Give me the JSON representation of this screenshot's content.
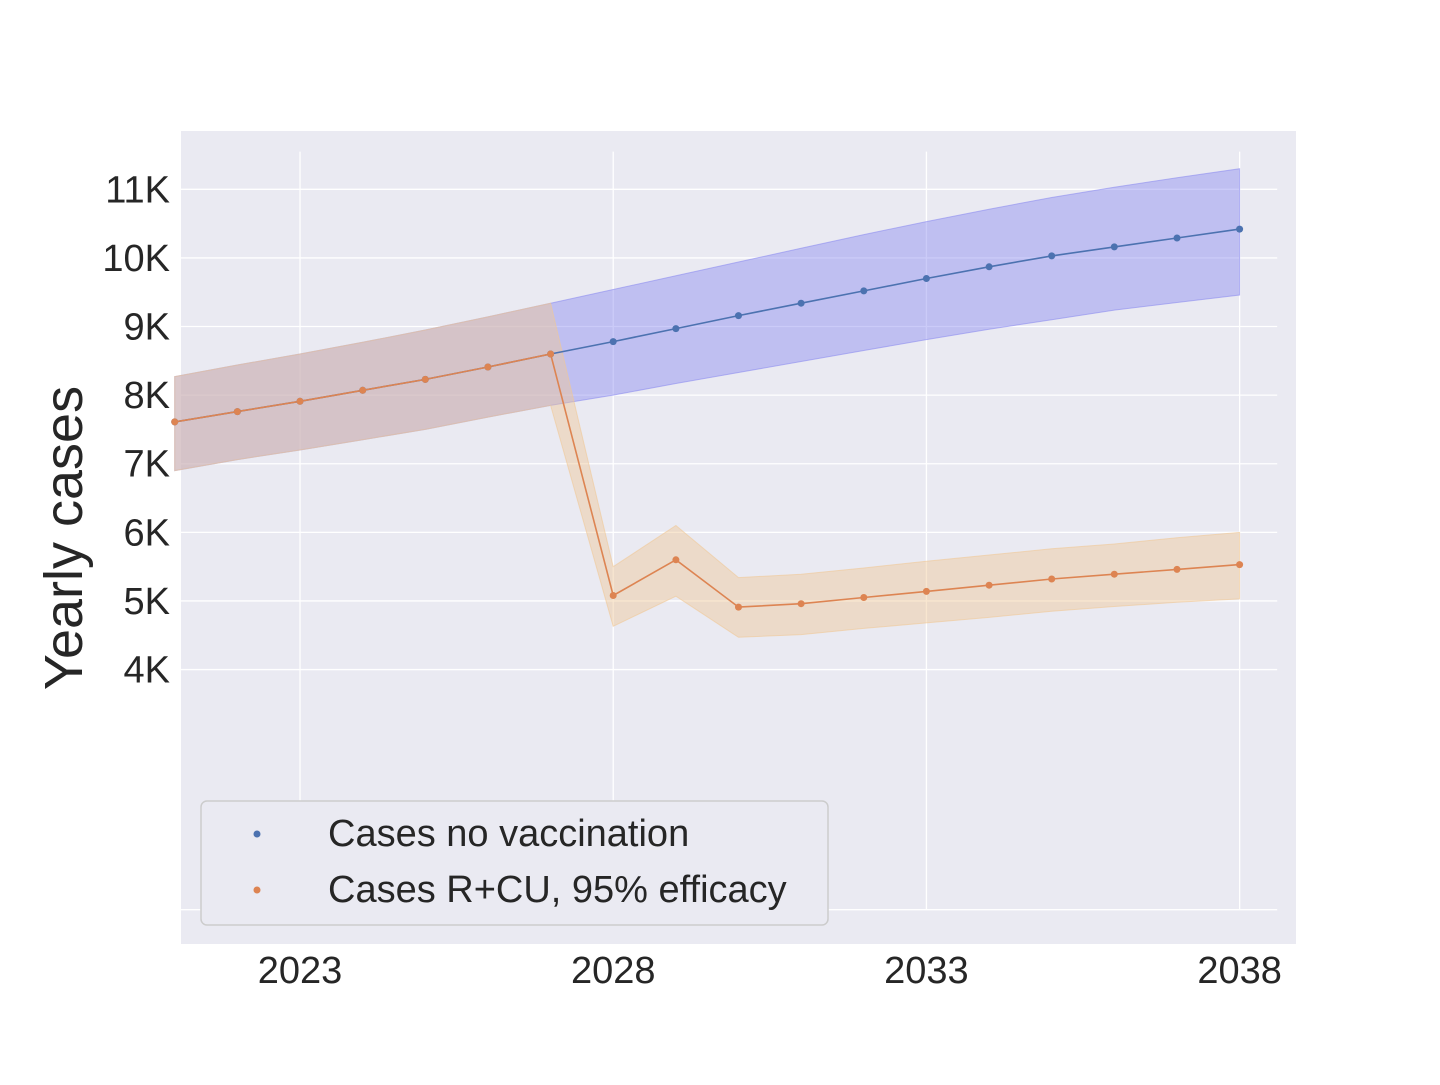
{
  "chart_data": {
    "type": "line",
    "title": "",
    "xlabel": "",
    "ylabel": "Yearly cases",
    "xlim": [
      2021.1,
      2038.9
    ],
    "ylim": [
      0,
      11850
    ],
    "x_ticks": [
      2023,
      2028,
      2033,
      2038
    ],
    "x_tick_labels": [
      "2023",
      "2028",
      "2033",
      "2038"
    ],
    "y_ticks": [
      4000,
      5000,
      6000,
      7000,
      8000,
      9000,
      10000,
      11000
    ],
    "y_tick_labels": [
      "4K",
      "5K",
      "6K",
      "7K",
      "8K",
      "9K",
      "10K",
      "11K"
    ],
    "grid": true,
    "legend_position": "lower-left",
    "series": [
      {
        "name": "Cases no vaccination",
        "color": "#4c72b0",
        "band_color": "#8c8cf0",
        "x": [
          2021,
          2022,
          2023,
          2024,
          2025,
          2026,
          2027,
          2028,
          2029,
          2030,
          2031,
          2032,
          2033,
          2034,
          2035,
          2036,
          2037,
          2038
        ],
        "values": [
          7610,
          7760,
          7910,
          8070,
          8230,
          8410,
          8600,
          8780,
          8970,
          9160,
          9340,
          9520,
          9700,
          9870,
          10030,
          10160,
          10290,
          10420
        ],
        "lower": [
          6900,
          7060,
          7200,
          7350,
          7500,
          7680,
          7850,
          8000,
          8170,
          8330,
          8490,
          8650,
          8810,
          8960,
          9100,
          9240,
          9350,
          9460
        ],
        "upper": [
          8270,
          8440,
          8600,
          8770,
          8950,
          9140,
          9340,
          9540,
          9740,
          9940,
          10140,
          10340,
          10530,
          10710,
          10880,
          11030,
          11170,
          11300
        ]
      },
      {
        "name": "Cases R+CU, 95% efficacy",
        "color": "#dd8452",
        "band_color": "#f0c896",
        "x": [
          2021,
          2022,
          2023,
          2024,
          2025,
          2026,
          2027,
          2028,
          2029,
          2030,
          2031,
          2032,
          2033,
          2034,
          2035,
          2036,
          2037,
          2038
        ],
        "values": [
          7610,
          7760,
          7910,
          8070,
          8230,
          8410,
          8600,
          5080,
          5600,
          4910,
          4960,
          5050,
          5140,
          5230,
          5320,
          5390,
          5460,
          5530
        ],
        "lower": [
          6900,
          7060,
          7200,
          7350,
          7500,
          7680,
          7850,
          4630,
          5070,
          4470,
          4510,
          4600,
          4680,
          4760,
          4850,
          4920,
          4980,
          5030
        ],
        "upper": [
          8270,
          8440,
          8600,
          8770,
          8950,
          9140,
          9340,
          5500,
          6100,
          5340,
          5390,
          5480,
          5580,
          5670,
          5760,
          5830,
          5920,
          6000
        ]
      }
    ]
  }
}
